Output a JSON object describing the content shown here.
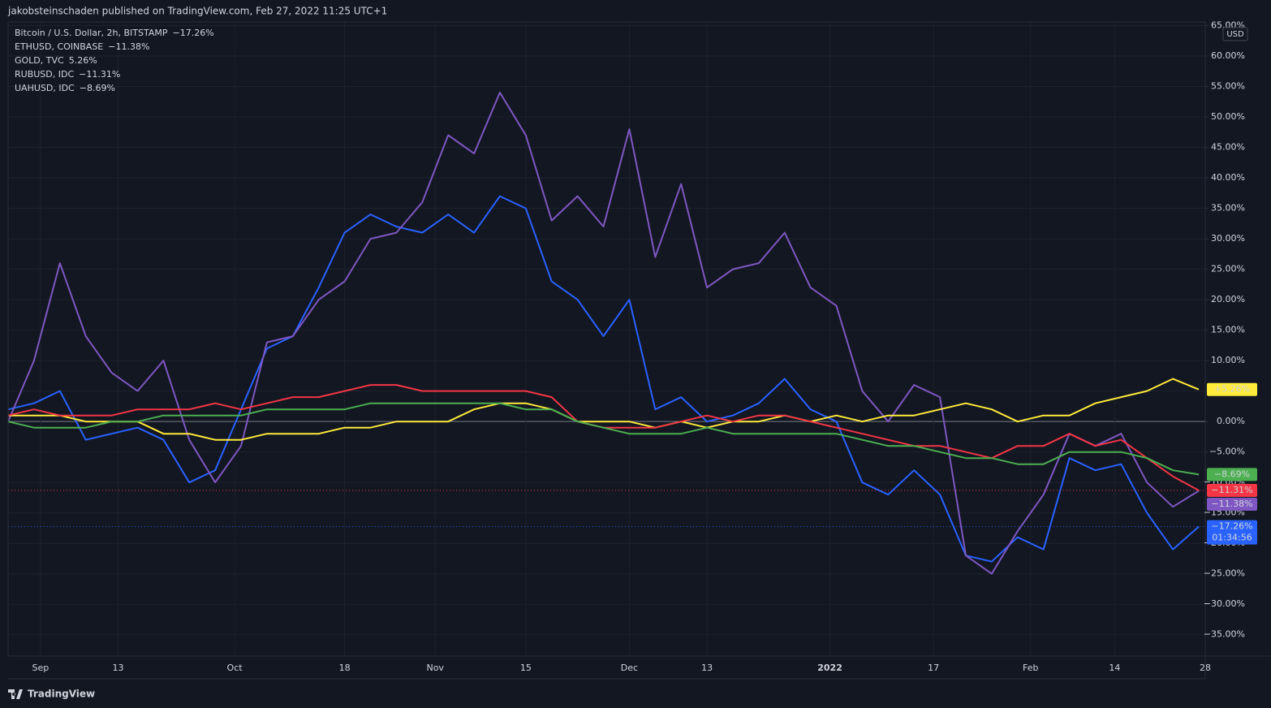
{
  "header": {
    "text": "jakobsteinschaden published on TradingView.com, Feb 27, 2022 11:25 UTC+1"
  },
  "footer": {
    "brand": "TradingView"
  },
  "chart_data": {
    "type": "line",
    "currency": "USD",
    "x": [
      "2021-08-27",
      "2021-08-31",
      "2021-09-04",
      "2021-09-08",
      "2021-09-12",
      "2021-09-16",
      "2021-09-20",
      "2021-09-24",
      "2021-09-28",
      "2021-10-02",
      "2021-10-06",
      "2021-10-10",
      "2021-10-14",
      "2021-10-18",
      "2021-10-22",
      "2021-10-26",
      "2021-10-30",
      "2021-11-03",
      "2021-11-07",
      "2021-11-11",
      "2021-11-15",
      "2021-11-19",
      "2021-11-23",
      "2021-11-27",
      "2021-12-01",
      "2021-12-05",
      "2021-12-09",
      "2021-12-13",
      "2021-12-17",
      "2021-12-21",
      "2021-12-25",
      "2021-12-29",
      "2022-01-02",
      "2022-01-06",
      "2022-01-10",
      "2022-01-14",
      "2022-01-18",
      "2022-01-22",
      "2022-01-26",
      "2022-01-30",
      "2022-02-03",
      "2022-02-07",
      "2022-02-11",
      "2022-02-15",
      "2022-02-19",
      "2022-02-23",
      "2022-02-27"
    ],
    "xlim": [
      "2021-08-27",
      "2022-02-28"
    ],
    "xticks": [
      {
        "value": "2021-09-01",
        "label": "Sep"
      },
      {
        "value": "2021-09-13",
        "label": "13"
      },
      {
        "value": "2021-10-01",
        "label": "Oct"
      },
      {
        "value": "2021-10-18",
        "label": "18"
      },
      {
        "value": "2021-11-01",
        "label": "Nov"
      },
      {
        "value": "2021-11-15",
        "label": "15"
      },
      {
        "value": "2021-12-01",
        "label": "Dec"
      },
      {
        "value": "2021-12-13",
        "label": "13"
      },
      {
        "value": "2022-01-01",
        "label": "2022"
      },
      {
        "value": "2022-01-17",
        "label": "17"
      },
      {
        "value": "2022-02-01",
        "label": "Feb"
      },
      {
        "value": "2022-02-14",
        "label": "14"
      },
      {
        "value": "2022-02-28",
        "label": "28"
      }
    ],
    "ylim": [
      -38.5,
      65.6
    ],
    "yticks": [
      {
        "value": -35,
        "label": "−35.00%"
      },
      {
        "value": -30,
        "label": "−30.00%"
      },
      {
        "value": -25,
        "label": "−25.00%"
      },
      {
        "value": -20,
        "label": "−20.00%"
      },
      {
        "value": -15,
        "label": "−15.00%"
      },
      {
        "value": -10,
        "label": "−10.00%"
      },
      {
        "value": -5,
        "label": "−5.00%"
      },
      {
        "value": 0,
        "label": "0.00%"
      },
      {
        "value": 5,
        "label": "5.00%"
      },
      {
        "value": 10,
        "label": "10.00%"
      },
      {
        "value": 15,
        "label": "15.00%"
      },
      {
        "value": 20,
        "label": "20.00%"
      },
      {
        "value": 25,
        "label": "25.00%"
      },
      {
        "value": 30,
        "label": "30.00%"
      },
      {
        "value": 35,
        "label": "35.00%"
      },
      {
        "value": 40,
        "label": "40.00%"
      },
      {
        "value": 45,
        "label": "45.00%"
      },
      {
        "value": 50,
        "label": "50.00%"
      },
      {
        "value": 55,
        "label": "55.00%"
      },
      {
        "value": 60,
        "label": "60.00%"
      },
      {
        "value": 65,
        "label": "65.00%"
      }
    ],
    "grid": true,
    "countdown": "01:34:56",
    "series": [
      {
        "name": "Bitcoin / U.S. Dollar, 2h, BITSTAMP",
        "legend_value": "−17.26%",
        "badge_label": "−17.26%",
        "color": "#2962ff",
        "price_line": true,
        "values": [
          2,
          3,
          5,
          -3,
          -2,
          -1,
          -3,
          -10,
          -8,
          2,
          12,
          14,
          22,
          31,
          34,
          32,
          31,
          34,
          31,
          37,
          35,
          23,
          20,
          14,
          20,
          2,
          4,
          0,
          1,
          3,
          7,
          2,
          0,
          -10,
          -12,
          -8,
          -12,
          -22,
          -23,
          -19,
          -21,
          -6,
          -8,
          -7,
          -15,
          -21,
          -17.26
        ]
      },
      {
        "name": "ETHUSD, COINBASE",
        "legend_value": "−11.38%",
        "badge_label": "−11.38%",
        "color": "#7e57c2",
        "price_line": false,
        "values": [
          0,
          10,
          26,
          14,
          8,
          5,
          10,
          -3,
          -10,
          -4,
          13,
          14,
          20,
          23,
          30,
          31,
          36,
          47,
          44,
          54,
          47,
          33,
          37,
          32,
          48,
          27,
          39,
          22,
          25,
          26,
          31,
          22,
          19,
          5,
          0,
          6,
          4,
          -22,
          -25,
          -18,
          -12,
          -2,
          -4,
          -2,
          -10,
          -14,
          -11.38
        ]
      },
      {
        "name": "GOLD, TVC",
        "legend_value": "5.26%",
        "badge_label": "+5.26%",
        "color": "#ffeb3b",
        "price_line": false,
        "values": [
          1,
          1,
          1,
          0,
          0,
          0,
          -2,
          -2,
          -3,
          -3,
          -2,
          -2,
          -2,
          -1,
          -1,
          0,
          0,
          0,
          2,
          3,
          3,
          2,
          0,
          0,
          0,
          -1,
          0,
          -1,
          0,
          0,
          1,
          0,
          1,
          0,
          1,
          1,
          2,
          3,
          2,
          0,
          1,
          1,
          3,
          4,
          5,
          7,
          5.26
        ]
      },
      {
        "name": "RUBUSD, IDC",
        "legend_value": "−11.31%",
        "badge_label": "−11.31%",
        "color": "#f23645",
        "price_line": true,
        "values": [
          1,
          2,
          1,
          1,
          1,
          2,
          2,
          2,
          3,
          2,
          3,
          4,
          4,
          5,
          6,
          6,
          5,
          5,
          5,
          5,
          5,
          4,
          0,
          -1,
          -1,
          -1,
          0,
          1,
          0,
          1,
          1,
          0,
          -1,
          -2,
          -3,
          -4,
          -4,
          -5,
          -6,
          -4,
          -4,
          -2,
          -4,
          -3,
          -6,
          -9,
          -11.31
        ]
      },
      {
        "name": "UAHUSD, IDC",
        "legend_value": "−8.69%",
        "badge_label": "−8.69%",
        "color": "#4caf50",
        "price_line": false,
        "values": [
          0,
          -1,
          -1,
          -1,
          0,
          0,
          1,
          1,
          1,
          1,
          2,
          2,
          2,
          2,
          3,
          3,
          3,
          3,
          3,
          3,
          2,
          2,
          0,
          -1,
          -2,
          -2,
          -2,
          -1,
          -2,
          -2,
          -2,
          -2,
          -2,
          -3,
          -4,
          -4,
          -5,
          -6,
          -6,
          -7,
          -7,
          -5,
          -5,
          -5,
          -6,
          -8,
          -8.69
        ]
      }
    ]
  }
}
